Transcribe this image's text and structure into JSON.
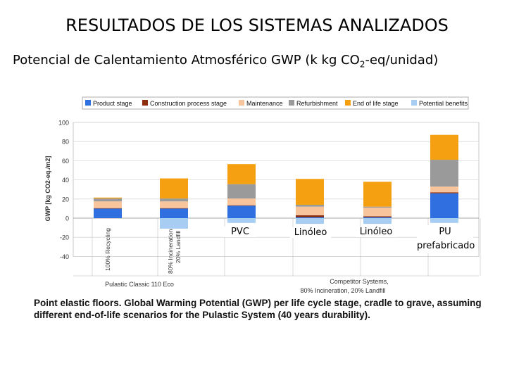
{
  "slide": {
    "title": "RESULTADOS DE LOS SISTEMAS ANALIZADOS",
    "subtitle_main": "Potencial de Calentamiento Atmosférico GWP (k kg CO",
    "subtitle_sub": "2",
    "subtitle_end": "-eq/unidad)",
    "system_names": [
      "PVC",
      "Linóleo",
      "Linóleo",
      "PU prefabricado"
    ],
    "caption": "Point elastic floors. Global Warming Potential (GWP) per life cycle stage, cradle to grave, assuming different end-of-life scenarios for the Pulastic System (40 years durability)."
  },
  "chart_data": {
    "type": "bar",
    "stacked": true,
    "ylabel": "GWP [kg CO2-eq./m2]",
    "ylim": [
      -40,
      100
    ],
    "yticks": [
      100,
      80,
      60,
      40,
      20,
      0,
      -20,
      -40
    ],
    "categories": [
      "Pulastic 100% Recycling",
      "Pulastic 80% Incineration 20% Landfill",
      "PVC",
      "Linóleo",
      "Linóleo",
      "PU prefabricado"
    ],
    "bar_rotated_labels": [
      "100% Recycling",
      "80% Incineration\n20% Landfill",
      "",
      "",
      "",
      ""
    ],
    "group_labels": [
      "Pulastic Classic 110 Eco",
      "Competitor Systems,\n80% Incineration, 20% Landfill"
    ],
    "legend": [
      {
        "name": "Product stage",
        "color": "#2f6fe0"
      },
      {
        "name": "Construction process stage",
        "color": "#8b2e0e"
      },
      {
        "name": "Maintenance",
        "color": "#f8c49c"
      },
      {
        "name": "Refurbishment",
        "color": "#9a9a9a"
      },
      {
        "name": "End of life stage",
        "color": "#f5a010"
      },
      {
        "name": "Potential benefits",
        "color": "#a8cdf2"
      }
    ],
    "series": [
      {
        "name": "Product stage",
        "values": [
          10,
          10,
          13,
          1,
          1,
          26
        ]
      },
      {
        "name": "Construction process stage",
        "values": [
          0.5,
          0.5,
          0.5,
          2,
          1,
          1
        ]
      },
      {
        "name": "Maintenance",
        "values": [
          7,
          7,
          7,
          9,
          9,
          6
        ]
      },
      {
        "name": "Refurbishment",
        "values": [
          3,
          3,
          15,
          2,
          1,
          28
        ]
      },
      {
        "name": "End of life stage",
        "values": [
          1,
          21,
          21,
          27,
          26,
          26
        ]
      },
      {
        "name": "Potential benefits",
        "values": [
          0,
          -11,
          -5,
          -6,
          -6,
          -5
        ]
      }
    ]
  }
}
